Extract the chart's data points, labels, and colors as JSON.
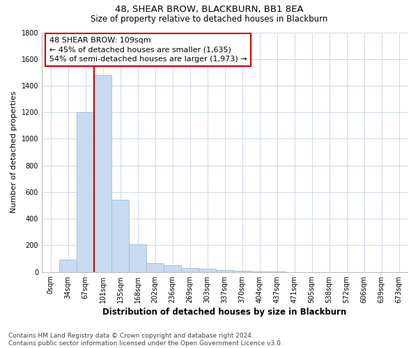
{
  "title": "48, SHEAR BROW, BLACKBURN, BB1 8EA",
  "subtitle": "Size of property relative to detached houses in Blackburn",
  "xlabel": "Distribution of detached houses by size in Blackburn",
  "ylabel": "Number of detached properties",
  "bar_categories": [
    "0sqm",
    "34sqm",
    "67sqm",
    "101sqm",
    "135sqm",
    "168sqm",
    "202sqm",
    "236sqm",
    "269sqm",
    "303sqm",
    "337sqm",
    "370sqm",
    "404sqm",
    "437sqm",
    "471sqm",
    "505sqm",
    "538sqm",
    "572sqm",
    "606sqm",
    "639sqm",
    "673sqm"
  ],
  "bar_values": [
    0,
    90,
    1200,
    1480,
    540,
    205,
    65,
    50,
    30,
    25,
    15,
    10,
    5,
    2,
    1,
    0,
    0,
    0,
    0,
    0,
    0
  ],
  "bar_color": "#c8daf2",
  "bar_edge_color": "#a0bcd8",
  "property_line_x": 3,
  "property_line_color": "#cc0000",
  "annotation_line1": "48 SHEAR BROW: 109sqm",
  "annotation_line2": "← 45% of detached houses are smaller (1,635)",
  "annotation_line3": "54% of semi-detached houses are larger (1,973) →",
  "annotation_box_color": "#ffffff",
  "annotation_box_edge_color": "#cc0000",
  "ylim": [
    0,
    1800
  ],
  "yticks": [
    0,
    200,
    400,
    600,
    800,
    1000,
    1200,
    1400,
    1600,
    1800
  ],
  "footnote": "Contains HM Land Registry data © Crown copyright and database right 2024.\nContains public sector information licensed under the Open Government Licence v3.0.",
  "bg_color": "#ffffff",
  "grid_color": "#cdd8ec",
  "title_fontsize": 9.5,
  "subtitle_fontsize": 8.5,
  "ylabel_fontsize": 8,
  "xlabel_fontsize": 8.5,
  "tick_fontsize": 7,
  "annotation_fontsize": 8,
  "footnote_fontsize": 6.5
}
